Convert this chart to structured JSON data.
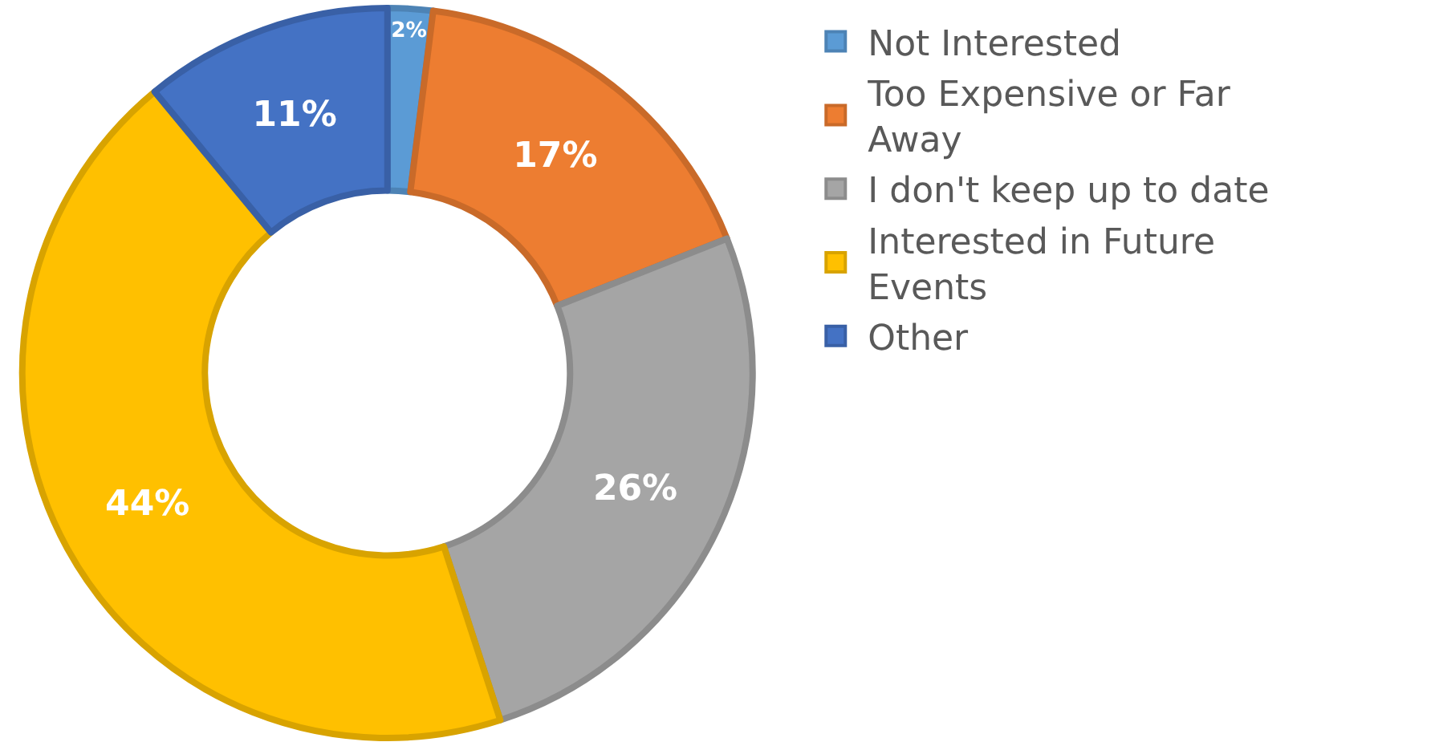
{
  "chart_data": {
    "type": "donut",
    "categories": [
      "Not Interested",
      "Too Expensive or Far Away",
      "I don't keep up to date",
      "Interested in Future Events",
      "Other"
    ],
    "values": [
      2,
      17,
      26,
      44,
      11
    ],
    "colors": [
      "#5b9bd5",
      "#ed7d31",
      "#a5a5a5",
      "#ffc000",
      "#4472c4"
    ],
    "value_labels": [
      "2%",
      "17%",
      "26%",
      "44%",
      "11%"
    ],
    "legend": "right"
  }
}
